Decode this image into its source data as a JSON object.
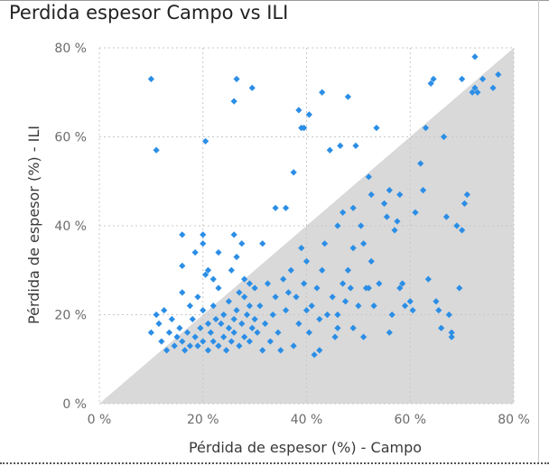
{
  "chart_data": {
    "type": "scatter",
    "title": "Perdida espesor Campo vs ILI",
    "xlabel": "Pérdida de espesor (%) - Campo",
    "ylabel": "Pérdida de espesor (%) - ILI",
    "xlim": [
      0,
      80
    ],
    "ylim": [
      0,
      80
    ],
    "x_ticks": [
      "0 %",
      "20 %",
      "40 %",
      "60 %",
      "80 %"
    ],
    "y_ticks": [
      "0 %",
      "20 %",
      "40 %",
      "60 %",
      "80 %"
    ],
    "grid": true,
    "reference_region": "below y = x diagonal (shaded)",
    "colors": {
      "points": "#2b8ee6",
      "region": "#d9d9d9",
      "grid": "#c8c8c8"
    },
    "points": [
      [
        10,
        73
      ],
      [
        11,
        57
      ],
      [
        20.5,
        59
      ],
      [
        26.5,
        73
      ],
      [
        29.5,
        71
      ],
      [
        26,
        68
      ],
      [
        10,
        16
      ],
      [
        11,
        20
      ],
      [
        11.5,
        18
      ],
      [
        12,
        14
      ],
      [
        12.5,
        21
      ],
      [
        13,
        12
      ],
      [
        13.5,
        16
      ],
      [
        14,
        19
      ],
      [
        14.5,
        13
      ],
      [
        15,
        15
      ],
      [
        15.5,
        17
      ],
      [
        16,
        14
      ],
      [
        16,
        25
      ],
      [
        16.5,
        12
      ],
      [
        17,
        16
      ],
      [
        17.5,
        22
      ],
      [
        17.5,
        13
      ],
      [
        18,
        19
      ],
      [
        18.5,
        15
      ],
      [
        19,
        24
      ],
      [
        19,
        13
      ],
      [
        19.5,
        17
      ],
      [
        20,
        21
      ],
      [
        20,
        14
      ],
      [
        20.5,
        29
      ],
      [
        21,
        18
      ],
      [
        21,
        12
      ],
      [
        21.5,
        16
      ],
      [
        22,
        22
      ],
      [
        22,
        14
      ],
      [
        22.5,
        19
      ],
      [
        23,
        26
      ],
      [
        23,
        13
      ],
      [
        23.5,
        18
      ],
      [
        24,
        15
      ],
      [
        24,
        20
      ],
      [
        24.5,
        12
      ],
      [
        25,
        17
      ],
      [
        25,
        23
      ],
      [
        25.5,
        14
      ],
      [
        26,
        19
      ],
      [
        26,
        16
      ],
      [
        26.5,
        21
      ],
      [
        27,
        25
      ],
      [
        27,
        13
      ],
      [
        27.5,
        18
      ],
      [
        28,
        15
      ],
      [
        28,
        24
      ],
      [
        28.5,
        20
      ],
      [
        29,
        14
      ],
      [
        29,
        22
      ],
      [
        29.5,
        17
      ],
      [
        30,
        26
      ],
      [
        30,
        19
      ],
      [
        16,
        38
      ],
      [
        16,
        31
      ],
      [
        18.5,
        34
      ],
      [
        20,
        38
      ],
      [
        20,
        36
      ],
      [
        21,
        30
      ],
      [
        22,
        28
      ],
      [
        23,
        34
      ],
      [
        25.5,
        30
      ],
      [
        26.5,
        33
      ],
      [
        26,
        38
      ],
      [
        27.5,
        36
      ],
      [
        28,
        28
      ],
      [
        29,
        27
      ],
      [
        30.5,
        16
      ],
      [
        31,
        22
      ],
      [
        31.5,
        12
      ],
      [
        32,
        18
      ],
      [
        32.5,
        27
      ],
      [
        33,
        14
      ],
      [
        33.5,
        20
      ],
      [
        34,
        24
      ],
      [
        34.5,
        16
      ],
      [
        35,
        12
      ],
      [
        35.5,
        28
      ],
      [
        36,
        21
      ],
      [
        36,
        44
      ],
      [
        36.5,
        25
      ],
      [
        37,
        30
      ],
      [
        37.5,
        13
      ],
      [
        37.5,
        52
      ],
      [
        38,
        24
      ],
      [
        38.5,
        18
      ],
      [
        39,
        35
      ],
      [
        39,
        62
      ],
      [
        39.5,
        27
      ],
      [
        40,
        21
      ],
      [
        40,
        32
      ],
      [
        40.5,
        16
      ],
      [
        41,
        22
      ],
      [
        41.5,
        11
      ],
      [
        42,
        26
      ],
      [
        42.5,
        19
      ],
      [
        43,
        30
      ],
      [
        43.5,
        36
      ],
      [
        44,
        20
      ],
      [
        44.5,
        57
      ],
      [
        45,
        24
      ],
      [
        45.5,
        15
      ],
      [
        46,
        20
      ],
      [
        46,
        40
      ],
      [
        46.5,
        58
      ],
      [
        47,
        27
      ],
      [
        47.5,
        23
      ],
      [
        48,
        30
      ],
      [
        48,
        69
      ],
      [
        48.5,
        26
      ],
      [
        49,
        35
      ],
      [
        49,
        17
      ],
      [
        49.5,
        58
      ],
      [
        50,
        22
      ],
      [
        50.5,
        40
      ],
      [
        51,
        36
      ],
      [
        51,
        15
      ],
      [
        51.5,
        26
      ],
      [
        52,
        51
      ],
      [
        52.5,
        47
      ],
      [
        52.5,
        32
      ],
      [
        53,
        22
      ],
      [
        53.5,
        62
      ],
      [
        54,
        27
      ],
      [
        55,
        45
      ],
      [
        55.5,
        42
      ],
      [
        56,
        16
      ],
      [
        56,
        48
      ],
      [
        56.5,
        20
      ],
      [
        57,
        39
      ],
      [
        57.5,
        41
      ],
      [
        58,
        47
      ],
      [
        58,
        26
      ],
      [
        58.5,
        27
      ],
      [
        59,
        22
      ],
      [
        60,
        23
      ],
      [
        60.5,
        21
      ],
      [
        61,
        43
      ],
      [
        62,
        54
      ],
      [
        62.5,
        48
      ],
      [
        63,
        62
      ],
      [
        63.5,
        28
      ],
      [
        64,
        72
      ],
      [
        64.5,
        73
      ],
      [
        65,
        23
      ],
      [
        65.5,
        21
      ],
      [
        66,
        17
      ],
      [
        66.5,
        60
      ],
      [
        67,
        42
      ],
      [
        67.5,
        20
      ],
      [
        68,
        16
      ],
      [
        68,
        15
      ],
      [
        69,
        40
      ],
      [
        69.5,
        26
      ],
      [
        70,
        73
      ],
      [
        70,
        39
      ],
      [
        70.5,
        45
      ],
      [
        71,
        47
      ],
      [
        72,
        70
      ],
      [
        72.5,
        71
      ],
      [
        72.5,
        78
      ],
      [
        73,
        70
      ],
      [
        74,
        73
      ],
      [
        76,
        71
      ],
      [
        77,
        74
      ],
      [
        52,
        26
      ],
      [
        46,
        17
      ],
      [
        42.5,
        12
      ],
      [
        40.5,
        65
      ],
      [
        43,
        70
      ],
      [
        38.5,
        66
      ],
      [
        31.5,
        36
      ],
      [
        34,
        44
      ],
      [
        39.5,
        62
      ],
      [
        47,
        43
      ],
      [
        49,
        44
      ]
    ]
  }
}
